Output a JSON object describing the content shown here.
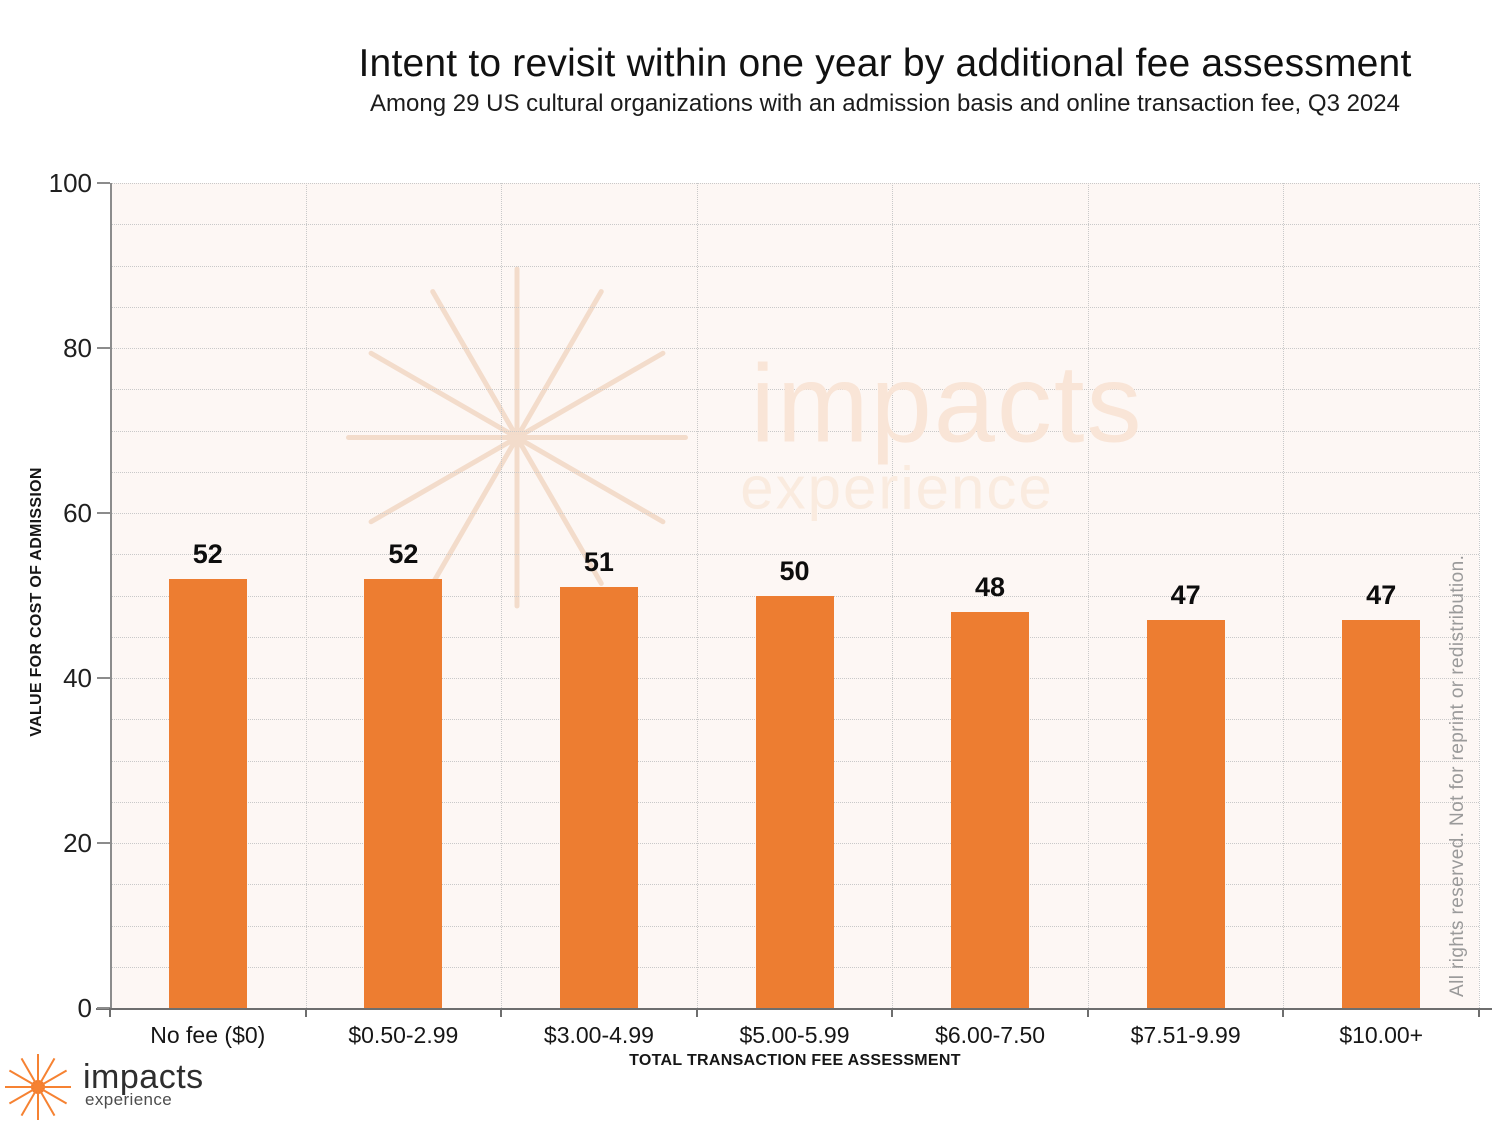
{
  "header": {
    "title": "Intent to revisit within one year by additional fee assessment",
    "subtitle": "Among 29 US cultural organizations with an admission basis and online transaction fee, Q3 2024"
  },
  "chart_data": {
    "type": "bar",
    "title": "Intent to revisit within one year by additional fee assessment",
    "subtitle": "Among 29 US cultural organizations with an admission basis and online transaction fee, Q3 2024",
    "categories": [
      "No fee ($0)",
      "$0.50-2.99",
      "$3.00-4.99",
      "$5.00-5.99",
      "$6.00-7.50",
      "$7.51-9.99",
      "$10.00+"
    ],
    "values": [
      52,
      52,
      51,
      50,
      48,
      47,
      47
    ],
    "xlabel": "TOTAL TRANSACTION FEE ASSESSMENT",
    "ylabel": "VALUE FOR COST OF ADMISSION",
    "ylim": [
      0,
      100
    ],
    "y_ticks": [
      0,
      20,
      40,
      60,
      80,
      100
    ],
    "minor_gridline_step": 5,
    "grid": true,
    "legend": "none",
    "bar_color": "#ED7D31",
    "plot_background": "#FDF7F4"
  },
  "watermark": {
    "brand": "impacts",
    "sub": "experience"
  },
  "footer_logo": {
    "brand": "impacts",
    "sub": "experience"
  },
  "rights_notice": "All rights reserved. Not for reprint or redistribution."
}
